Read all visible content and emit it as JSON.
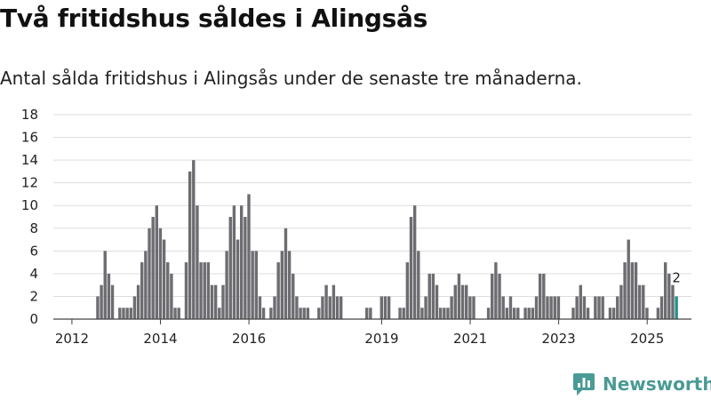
{
  "header": {
    "title": "Två fritidshus såldes i Alingsås",
    "subtitle": "Antal sålda fritidshus i Alingsås under de senaste tre månaderna."
  },
  "brand": {
    "name": "Newsworthy",
    "icon": "newsworthy-logo-icon",
    "color": "#4a9a95"
  },
  "chart_data": {
    "type": "bar",
    "colors": {
      "bars": "#6d6c71",
      "highlight": "#23908c",
      "grid": "#dddddd",
      "axis": "#444444"
    },
    "ylim": [
      0,
      18
    ],
    "yticks": [
      0,
      2,
      4,
      6,
      8,
      10,
      12,
      14,
      16,
      18
    ],
    "grid": true,
    "xlim": [
      2011.58,
      2026.0
    ],
    "xticks": [
      {
        "label": "2012",
        "value": 2012
      },
      {
        "label": "2014",
        "value": 2014
      },
      {
        "label": "2016",
        "value": 2016
      },
      {
        "label": "2019",
        "value": 2019
      },
      {
        "label": "2021",
        "value": 2021
      },
      {
        "label": "2023",
        "value": 2023
      },
      {
        "label": "2025",
        "value": 2025
      }
    ],
    "x_start": 2011.75,
    "x_step": 0.0833,
    "values": [
      0,
      0,
      0,
      0,
      0,
      0,
      0,
      0,
      0,
      0,
      2,
      3,
      6,
      4,
      3,
      0,
      1,
      1,
      1,
      1,
      2,
      3,
      5,
      6,
      8,
      9,
      10,
      8,
      7,
      5,
      4,
      1,
      1,
      0,
      5,
      13,
      14,
      10,
      5,
      5,
      5,
      3,
      3,
      1,
      3,
      6,
      9,
      10,
      7,
      10,
      9,
      11,
      6,
      6,
      2,
      1,
      0,
      1,
      2,
      5,
      6,
      8,
      6,
      4,
      2,
      1,
      1,
      1,
      0,
      0,
      1,
      2,
      3,
      2,
      3,
      2,
      2,
      0,
      0,
      0,
      0,
      0,
      0,
      1,
      1,
      0,
      0,
      2,
      2,
      2,
      0,
      0,
      1,
      1,
      5,
      9,
      10,
      6,
      1,
      2,
      4,
      4,
      3,
      1,
      1,
      1,
      2,
      3,
      4,
      3,
      3,
      2,
      2,
      0,
      0,
      0,
      1,
      4,
      5,
      4,
      2,
      1,
      2,
      1,
      1,
      0,
      1,
      1,
      1,
      2,
      4,
      4,
      2,
      2,
      2,
      2,
      0,
      0,
      0,
      1,
      2,
      3,
      2,
      1,
      0,
      2,
      2,
      2,
      0,
      1,
      1,
      2,
      3,
      5,
      7,
      5,
      5,
      3,
      3,
      1,
      0,
      0,
      1,
      2,
      5,
      4,
      3,
      2
    ],
    "highlight_last": true,
    "last_label": "2"
  }
}
